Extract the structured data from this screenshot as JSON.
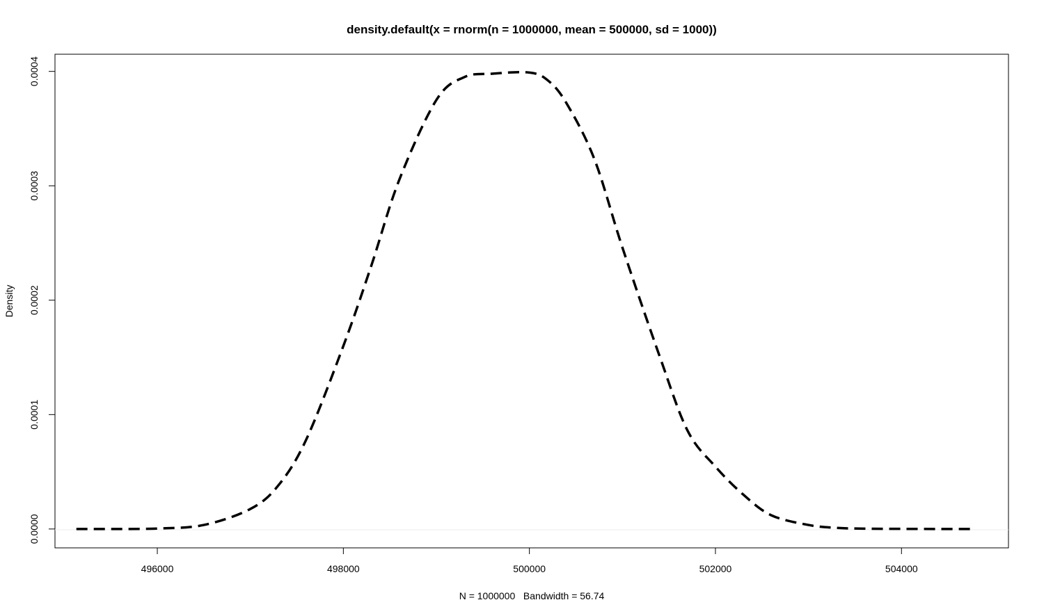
{
  "chart_data": {
    "type": "line",
    "title": "density.default(x = rnorm(n = 1000000, mean = 500000, sd = 1000))",
    "xlabel": "N = 1000000   Bandwidth = 56.74",
    "ylabel": "Density",
    "xlim": [
      494900,
      505150
    ],
    "ylim": [
      -1.65e-05,
      0.000415
    ],
    "x_ticks": [
      496000,
      498000,
      500000,
      502000,
      504000
    ],
    "x_tick_labels": [
      "496000",
      "498000",
      "500000",
      "502000",
      "504000"
    ],
    "y_ticks": [
      0.0,
      0.0001,
      0.0002,
      0.0003,
      0.0004
    ],
    "y_tick_labels": [
      "0.0000",
      "0.0001",
      "0.0002",
      "0.0003",
      "0.0004"
    ],
    "line_style": "dashed",
    "line_color": "#000000",
    "baseline_color": "#eeeeee",
    "series": [
      {
        "x": [
          495130,
          495500,
          496000,
          496500,
          497000,
          497300,
          497600,
          498000,
          498300,
          498600,
          499000,
          499300,
          499600,
          500000,
          500200,
          500400,
          500700,
          501000,
          501400,
          501700,
          502000,
          502300,
          502600,
          503000,
          503300,
          503600,
          504000,
          504400,
          504760
        ],
        "y": [
          0.0,
          0.0,
          4e-07,
          3.5e-06,
          1.75e-05,
          3.8e-05,
          7.8e-05,
          0.00016,
          0.00023,
          0.000305,
          0.000375,
          0.000395,
          0.000398,
          0.000399,
          0.000392,
          0.000372,
          0.000323,
          0.000246,
          0.000151,
          8.6e-05,
          5.45e-05,
          3e-05,
          1.2e-05,
          3.5e-06,
          1e-06,
          3e-07,
          1e-07,
          0.0,
          0.0
        ]
      }
    ]
  }
}
